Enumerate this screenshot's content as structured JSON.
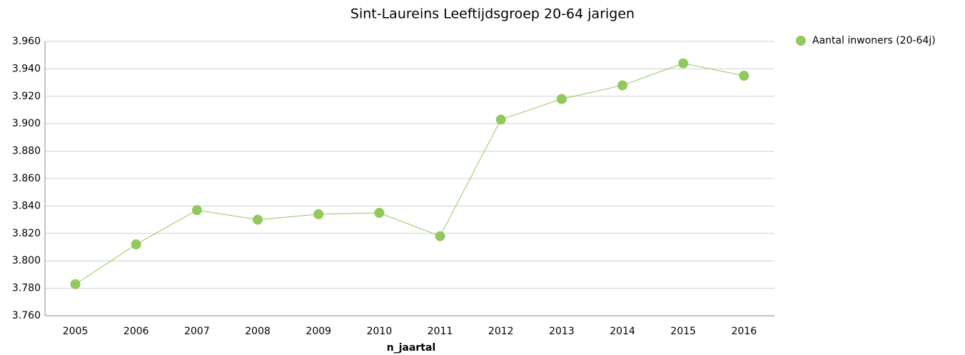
{
  "chart_data": {
    "type": "line",
    "title": "Sint-Laureins  Leeftijdsgroep 20-64 jarigen",
    "x_label": "n_jaartal",
    "categories": [
      "2005",
      "2006",
      "2007",
      "2008",
      "2009",
      "2010",
      "2011",
      "2012",
      "2013",
      "2014",
      "2015",
      "2016"
    ],
    "series": [
      {
        "name": "Aantal inwoners  (20-64j)",
        "color": "#92c95c",
        "values": [
          3783,
          3812,
          3837,
          3830,
          3834,
          3835,
          3818,
          3903,
          3918,
          3928,
          3944,
          3935
        ]
      }
    ],
    "ylim": [
      3760,
      3960
    ],
    "yticks": [
      {
        "value": 3760,
        "label": "3.760"
      },
      {
        "value": 3780,
        "label": "3.780"
      },
      {
        "value": 3800,
        "label": "3.800"
      },
      {
        "value": 3820,
        "label": "3.820"
      },
      {
        "value": 3840,
        "label": "3.840"
      },
      {
        "value": 3860,
        "label": "3.860"
      },
      {
        "value": 3880,
        "label": "3.880"
      },
      {
        "value": 3900,
        "label": "3.900"
      },
      {
        "value": 3920,
        "label": "3.920"
      },
      {
        "value": 3940,
        "label": "3.940"
      },
      {
        "value": 3960,
        "label": "3.960"
      }
    ],
    "grid": true,
    "legend": "right"
  }
}
